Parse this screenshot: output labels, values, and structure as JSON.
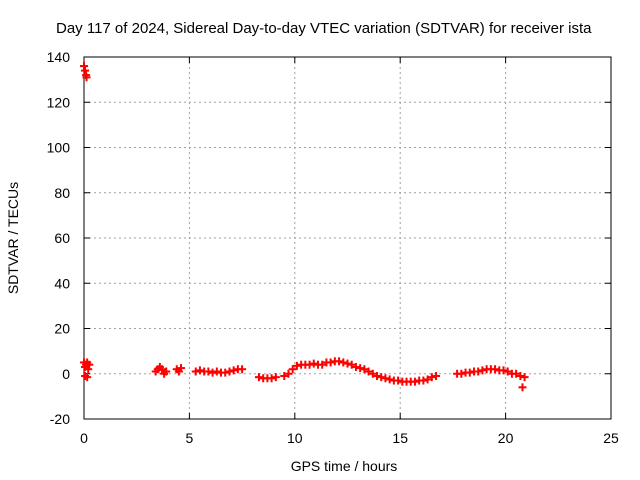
{
  "chart_data": {
    "type": "scatter",
    "title": "Day 117 of 2024, Sidereal Day-to-day VTEC variation (SDTVAR) for receiver ista",
    "xlabel": "GPS time / hours",
    "ylabel": "SDTVAR / TECUs",
    "xlim": [
      0,
      25
    ],
    "ylim": [
      -20,
      140
    ],
    "xticks": [
      "0",
      "5",
      "10",
      "15",
      "20",
      "25"
    ],
    "yticks": [
      "-20",
      "0",
      "20",
      "40",
      "60",
      "80",
      "100",
      "120",
      "140"
    ],
    "grid": true,
    "legend": "none",
    "marker": "plus",
    "series": [
      {
        "color": "#ff0000",
        "points": [
          [
            0.0,
            136
          ],
          [
            0.05,
            134
          ],
          [
            0.1,
            132
          ],
          [
            0.12,
            131
          ],
          [
            0.0,
            5
          ],
          [
            0.05,
            3
          ],
          [
            0.1,
            4
          ],
          [
            0.15,
            5
          ],
          [
            0.2,
            2
          ],
          [
            0.25,
            4
          ],
          [
            0.05,
            -1
          ],
          [
            0.15,
            -1.5
          ],
          [
            3.4,
            1
          ],
          [
            3.5,
            2
          ],
          [
            3.6,
            3
          ],
          [
            3.7,
            2
          ],
          [
            3.8,
            0
          ],
          [
            3.9,
            1
          ],
          [
            4.4,
            2
          ],
          [
            4.5,
            1
          ],
          [
            4.6,
            2.5
          ],
          [
            5.3,
            1
          ],
          [
            5.5,
            1.5
          ],
          [
            5.7,
            1
          ],
          [
            5.9,
            1
          ],
          [
            6.1,
            0.5
          ],
          [
            6.3,
            1
          ],
          [
            6.5,
            0.5
          ],
          [
            6.7,
            0.5
          ],
          [
            6.9,
            1
          ],
          [
            7.1,
            1.5
          ],
          [
            7.3,
            2
          ],
          [
            7.5,
            2
          ],
          [
            8.3,
            -1.5
          ],
          [
            8.5,
            -2
          ],
          [
            8.7,
            -2
          ],
          [
            8.9,
            -2
          ],
          [
            9.1,
            -1.5
          ],
          [
            9.5,
            -1
          ],
          [
            9.7,
            0
          ],
          [
            9.9,
            2
          ],
          [
            10.1,
            3.5
          ],
          [
            10.3,
            4
          ],
          [
            10.5,
            4
          ],
          [
            10.7,
            4
          ],
          [
            10.9,
            4.5
          ],
          [
            11.1,
            4
          ],
          [
            11.3,
            4
          ],
          [
            11.5,
            5
          ],
          [
            11.7,
            5
          ],
          [
            11.9,
            5.5
          ],
          [
            12.1,
            5.5
          ],
          [
            12.3,
            5
          ],
          [
            12.5,
            4.5
          ],
          [
            12.7,
            4
          ],
          [
            12.9,
            3
          ],
          [
            13.1,
            2.5
          ],
          [
            13.3,
            2
          ],
          [
            13.5,
            1
          ],
          [
            13.7,
            0
          ],
          [
            13.9,
            -1
          ],
          [
            14.1,
            -1.5
          ],
          [
            14.3,
            -2
          ],
          [
            14.5,
            -2.5
          ],
          [
            14.7,
            -3
          ],
          [
            14.9,
            -3
          ],
          [
            15.1,
            -3.5
          ],
          [
            15.3,
            -3.5
          ],
          [
            15.5,
            -3.5
          ],
          [
            15.7,
            -3.5
          ],
          [
            15.9,
            -3
          ],
          [
            16.1,
            -3
          ],
          [
            16.3,
            -2.5
          ],
          [
            16.5,
            -1.5
          ],
          [
            16.7,
            -1
          ],
          [
            17.7,
            0
          ],
          [
            17.9,
            0
          ],
          [
            18.1,
            0.5
          ],
          [
            18.3,
            0.5
          ],
          [
            18.5,
            1
          ],
          [
            18.7,
            1
          ],
          [
            18.9,
            1.5
          ],
          [
            19.1,
            2
          ],
          [
            19.3,
            2
          ],
          [
            19.5,
            2
          ],
          [
            19.7,
            1.5
          ],
          [
            19.9,
            1.5
          ],
          [
            20.1,
            1
          ],
          [
            20.3,
            0
          ],
          [
            20.5,
            0
          ],
          [
            20.7,
            -1
          ],
          [
            20.9,
            -1.5
          ],
          [
            20.8,
            -6
          ]
        ]
      }
    ]
  }
}
